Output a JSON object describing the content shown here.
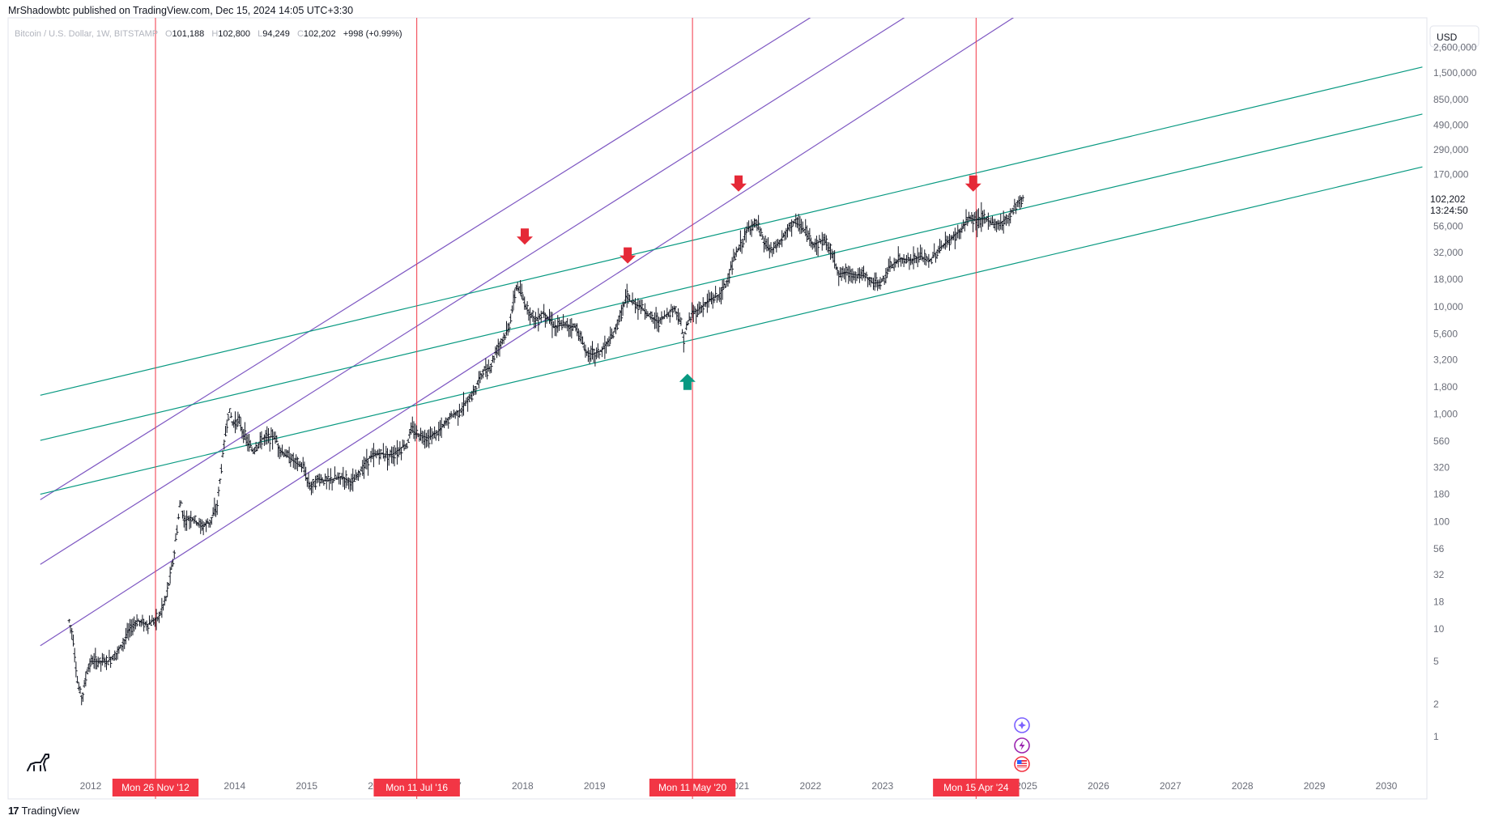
{
  "header": {
    "publisher_line": "MrShadowbtc published on TradingView.com, Dec 15, 2024 14:05 UTC+3:30"
  },
  "legend": {
    "symbol": "Bitcoin / U.S. Dollar, 1W, BITSTAMP",
    "o_label": "O",
    "o_value": "101,188",
    "h_label": "H",
    "h_value": "102,800",
    "l_label": "L",
    "l_value": "94,249",
    "c_label": "C",
    "c_value": "102,202",
    "change": "+998 (+0.99%)"
  },
  "currency_button": "USD",
  "footer": {
    "brand": "TradingView",
    "logo_glyph": "17"
  },
  "last_price": {
    "value": "102,202",
    "countdown": "13:24:50"
  },
  "colors": {
    "price_bars": "#131722",
    "vertical_markers": "#f23645",
    "date_tag_bg": "#f23645",
    "purple_channel": "#7e57c2",
    "teal_lines": "#089981",
    "arrow_down": "#e52937",
    "arrow_up": "#089981",
    "axis_text": "#6a6d78"
  },
  "icons": [
    "dino-icon",
    "sparkle-icon",
    "lightning-icon",
    "us-flag-icon"
  ],
  "chart_data": {
    "type": "candlestick",
    "scale": "log",
    "x_range": [
      2011.3,
      2030.5
    ],
    "y_range": [
      0.5,
      3500000
    ],
    "x_tick_labels": [
      "2012",
      "2014",
      "2015",
      "2016",
      "2017",
      "2018",
      "2019",
      "2020",
      "2021",
      "2022",
      "2023",
      "2024",
      "2025",
      "2026",
      "2027",
      "2028",
      "2029",
      "2030"
    ],
    "x_tick_values": [
      2012,
      2014,
      2015,
      2016,
      2017,
      2018,
      2019,
      2020,
      2021,
      2022,
      2023,
      2024,
      2025,
      2026,
      2027,
      2028,
      2029,
      2030
    ],
    "y_tick_labels": [
      "1",
      "2",
      "5",
      "10",
      "18",
      "32",
      "56",
      "100",
      "180",
      "320",
      "560",
      "1,000",
      "1,800",
      "3,200",
      "5,600",
      "10,000",
      "18,000",
      "32,000",
      "56,000",
      "170,000",
      "290,000",
      "490,000",
      "850,000",
      "1,500,000",
      "2,600,000"
    ],
    "y_tick_values": [
      1,
      2,
      5,
      10,
      18,
      32,
      56,
      100,
      180,
      320,
      560,
      1000,
      1800,
      3200,
      5600,
      10000,
      18000,
      32000,
      56000,
      170000,
      290000,
      490000,
      850000,
      1500000,
      2600000
    ],
    "vertical_markers": [
      {
        "x": 2012.9,
        "label": "Mon 26 Nov '12"
      },
      {
        "x": 2016.53,
        "label": "Mon 11 Jul '16"
      },
      {
        "x": 2020.36,
        "label": "Mon 11 May '20"
      },
      {
        "x": 2024.3,
        "label": "Mon 15 Apr '24"
      }
    ],
    "price_path": [
      [
        2011.7,
        12
      ],
      [
        2011.75,
        9
      ],
      [
        2011.82,
        3
      ],
      [
        2011.88,
        2.3
      ],
      [
        2011.95,
        4
      ],
      [
        2012.0,
        5
      ],
      [
        2012.1,
        5
      ],
      [
        2012.25,
        5
      ],
      [
        2012.4,
        6.5
      ],
      [
        2012.55,
        10
      ],
      [
        2012.65,
        12
      ],
      [
        2012.8,
        11
      ],
      [
        2012.95,
        13
      ],
      [
        2013.05,
        20
      ],
      [
        2013.15,
        45
      ],
      [
        2013.25,
        160
      ],
      [
        2013.3,
        100
      ],
      [
        2013.4,
        110
      ],
      [
        2013.55,
        90
      ],
      [
        2013.65,
        100
      ],
      [
        2013.75,
        130
      ],
      [
        2013.85,
        500
      ],
      [
        2013.92,
        1100
      ],
      [
        2013.98,
        800
      ],
      [
        2014.05,
        900
      ],
      [
        2014.15,
        600
      ],
      [
        2014.25,
        450
      ],
      [
        2014.4,
        600
      ],
      [
        2014.55,
        620
      ],
      [
        2014.65,
        450
      ],
      [
        2014.8,
        380
      ],
      [
        2014.95,
        320
      ],
      [
        2015.05,
        210
      ],
      [
        2015.15,
        250
      ],
      [
        2015.3,
        240
      ],
      [
        2015.5,
        260
      ],
      [
        2015.65,
        230
      ],
      [
        2015.85,
        380
      ],
      [
        2016.0,
        430
      ],
      [
        2016.2,
        420
      ],
      [
        2016.4,
        530
      ],
      [
        2016.45,
        720
      ],
      [
        2016.55,
        650
      ],
      [
        2016.7,
        600
      ],
      [
        2016.85,
        700
      ],
      [
        2017.0,
        950
      ],
      [
        2017.15,
        1100
      ],
      [
        2017.3,
        1500
      ],
      [
        2017.45,
        2500
      ],
      [
        2017.55,
        2700
      ],
      [
        2017.65,
        4200
      ],
      [
        2017.8,
        6000
      ],
      [
        2017.92,
        16000
      ],
      [
        2017.97,
        13500
      ],
      [
        2018.05,
        10000
      ],
      [
        2018.12,
        8500
      ],
      [
        2018.2,
        7500
      ],
      [
        2018.3,
        9000
      ],
      [
        2018.45,
        6500
      ],
      [
        2018.6,
        6800
      ],
      [
        2018.75,
        6400
      ],
      [
        2018.88,
        3800
      ],
      [
        2018.98,
        3600
      ],
      [
        2019.1,
        3900
      ],
      [
        2019.25,
        5200
      ],
      [
        2019.35,
        8000
      ],
      [
        2019.45,
        12500
      ],
      [
        2019.52,
        11000
      ],
      [
        2019.65,
        10000
      ],
      [
        2019.78,
        8000
      ],
      [
        2019.9,
        7300
      ],
      [
        2020.05,
        9000
      ],
      [
        2020.12,
        9800
      ],
      [
        2020.2,
        7000
      ],
      [
        2020.23,
        5000
      ],
      [
        2020.3,
        7000
      ],
      [
        2020.36,
        8800
      ],
      [
        2020.45,
        9300
      ],
      [
        2020.6,
        11500
      ],
      [
        2020.75,
        13000
      ],
      [
        2020.85,
        18000
      ],
      [
        2020.95,
        29000
      ],
      [
        2021.05,
        40000
      ],
      [
        2021.15,
        55000
      ],
      [
        2021.25,
        60000
      ],
      [
        2021.35,
        40000
      ],
      [
        2021.45,
        33000
      ],
      [
        2021.55,
        38000
      ],
      [
        2021.65,
        47000
      ],
      [
        2021.75,
        62000
      ],
      [
        2021.85,
        58000
      ],
      [
        2021.95,
        47000
      ],
      [
        2022.05,
        38000
      ],
      [
        2022.2,
        42000
      ],
      [
        2022.3,
        31000
      ],
      [
        2022.4,
        20000
      ],
      [
        2022.5,
        21000
      ],
      [
        2022.6,
        20000
      ],
      [
        2022.75,
        19500
      ],
      [
        2022.88,
        16500
      ],
      [
        2023.0,
        17000
      ],
      [
        2023.1,
        23000
      ],
      [
        2023.25,
        28000
      ],
      [
        2023.4,
        27000
      ],
      [
        2023.55,
        29500
      ],
      [
        2023.65,
        26000
      ],
      [
        2023.8,
        35000
      ],
      [
        2023.95,
        42000
      ],
      [
        2024.1,
        52000
      ],
      [
        2024.2,
        68000
      ],
      [
        2024.3,
        64000
      ],
      [
        2024.45,
        66000
      ],
      [
        2024.55,
        58000
      ],
      [
        2024.65,
        60000
      ],
      [
        2024.75,
        68000
      ],
      [
        2024.85,
        90000
      ],
      [
        2024.95,
        102202
      ]
    ],
    "channels": {
      "purple_lines": [
        {
          "x1": 2011.3,
          "y1": 7,
          "x2": 2030.5,
          "y2": 1400000000
        },
        {
          "x1": 2011.3,
          "y1": 40,
          "x2": 2030.5,
          "y2": 5500000000
        },
        {
          "x1": 2011.3,
          "y1": 160,
          "x2": 2030.5,
          "y2": 18000000000
        }
      ],
      "teal_lines": [
        {
          "x1": 2011.3,
          "y1": 1500,
          "x2": 2030.5,
          "y2": 1700000
        },
        {
          "x1": 2011.3,
          "y1": 570,
          "x2": 2030.5,
          "y2": 620000
        },
        {
          "x1": 2011.3,
          "y1": 180,
          "x2": 2030.5,
          "y2": 200000
        }
      ]
    },
    "arrows": [
      {
        "x": 2018.03,
        "y": 45000,
        "dir": "down"
      },
      {
        "x": 2019.46,
        "y": 30000,
        "dir": "down"
      },
      {
        "x": 2021.0,
        "y": 140000,
        "dir": "down"
      },
      {
        "x": 2024.26,
        "y": 140000,
        "dir": "down"
      },
      {
        "x": 2020.29,
        "y": 2000,
        "dir": "up"
      }
    ]
  }
}
